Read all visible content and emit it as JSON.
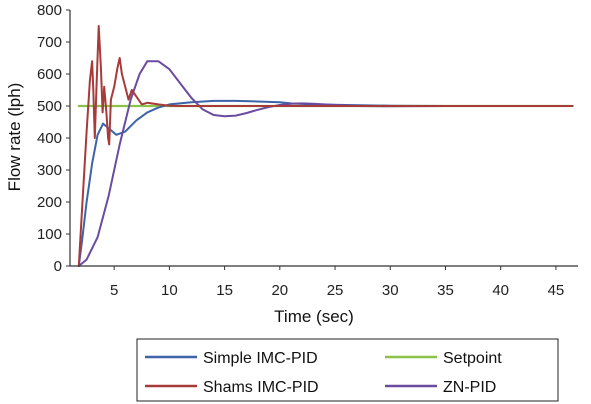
{
  "chart_data": {
    "type": "line",
    "title": "",
    "xlabel": "Time (sec)",
    "ylabel": "Flow rate (lph)",
    "xlim": [
      1,
      47
    ],
    "ylim": [
      0,
      800
    ],
    "x_ticks": [
      5,
      10,
      15,
      20,
      25,
      30,
      35,
      40,
      45
    ],
    "y_ticks": [
      0,
      100,
      200,
      300,
      400,
      500,
      600,
      700,
      800
    ],
    "grid": false,
    "legend_position": "bottom",
    "series": [
      {
        "name": "Simple IMC-PID",
        "color": "#3d64a8",
        "points": [
          [
            1.8,
            0
          ],
          [
            2.1,
            80
          ],
          [
            2.5,
            200
          ],
          [
            3.0,
            320
          ],
          [
            3.5,
            410
          ],
          [
            4.0,
            445
          ],
          [
            4.5,
            430
          ],
          [
            5.2,
            410
          ],
          [
            6.0,
            420
          ],
          [
            7.0,
            455
          ],
          [
            8.0,
            480
          ],
          [
            9.0,
            495
          ],
          [
            10.0,
            505
          ],
          [
            12.0,
            512
          ],
          [
            14.0,
            516
          ],
          [
            16.0,
            516
          ],
          [
            18.0,
            514
          ],
          [
            20.0,
            512
          ],
          [
            21.0,
            508
          ],
          [
            23.0,
            505
          ],
          [
            26.0,
            503
          ],
          [
            30.0,
            501
          ],
          [
            35.0,
            500
          ],
          [
            40.0,
            500
          ],
          [
            46.5,
            500
          ]
        ]
      },
      {
        "name": "Setpoint",
        "color": "#8bc34a",
        "points": [
          [
            1.8,
            500
          ],
          [
            46.5,
            500
          ]
        ]
      },
      {
        "name": "Shams IMC-PID",
        "color": "#a83a3a",
        "points": [
          [
            1.8,
            0
          ],
          [
            2.1,
            180
          ],
          [
            2.5,
            420
          ],
          [
            2.8,
            580
          ],
          [
            3.0,
            640
          ],
          [
            3.1,
            560
          ],
          [
            3.25,
            400
          ],
          [
            3.4,
            560
          ],
          [
            3.6,
            750
          ],
          [
            3.8,
            620
          ],
          [
            3.95,
            480
          ],
          [
            4.1,
            560
          ],
          [
            4.3,
            480
          ],
          [
            4.45,
            400
          ],
          [
            4.55,
            380
          ],
          [
            4.7,
            520
          ],
          [
            5.0,
            560
          ],
          [
            5.3,
            620
          ],
          [
            5.5,
            650
          ],
          [
            5.7,
            600
          ],
          [
            6.0,
            560
          ],
          [
            6.3,
            520
          ],
          [
            6.6,
            550
          ],
          [
            7.0,
            530
          ],
          [
            7.5,
            505
          ],
          [
            8.0,
            510
          ],
          [
            9.0,
            505
          ],
          [
            10.0,
            501
          ],
          [
            11.0,
            500
          ],
          [
            46.5,
            500
          ]
        ]
      },
      {
        "name": "ZN-PID",
        "color": "#6a4ba0",
        "points": [
          [
            1.8,
            0
          ],
          [
            2.5,
            20
          ],
          [
            3.5,
            90
          ],
          [
            4.5,
            220
          ],
          [
            5.5,
            380
          ],
          [
            6.5,
            520
          ],
          [
            7.3,
            600
          ],
          [
            8.0,
            640
          ],
          [
            9.0,
            640
          ],
          [
            10.0,
            615
          ],
          [
            11.0,
            570
          ],
          [
            12.0,
            525
          ],
          [
            13.0,
            490
          ],
          [
            14.0,
            472
          ],
          [
            15.0,
            468
          ],
          [
            16.0,
            470
          ],
          [
            17.0,
            478
          ],
          [
            18.0,
            488
          ],
          [
            19.0,
            497
          ],
          [
            20.0,
            503
          ],
          [
            21.0,
            507
          ],
          [
            22.0,
            508
          ],
          [
            23.0,
            507
          ],
          [
            25.0,
            503
          ],
          [
            27.0,
            500
          ],
          [
            30.0,
            499
          ],
          [
            35.0,
            500
          ],
          [
            46.5,
            500
          ]
        ]
      }
    ],
    "legend_order": [
      "Simple IMC-PID",
      "Setpoint",
      "Shams IMC-PID",
      "ZN-PID"
    ]
  }
}
